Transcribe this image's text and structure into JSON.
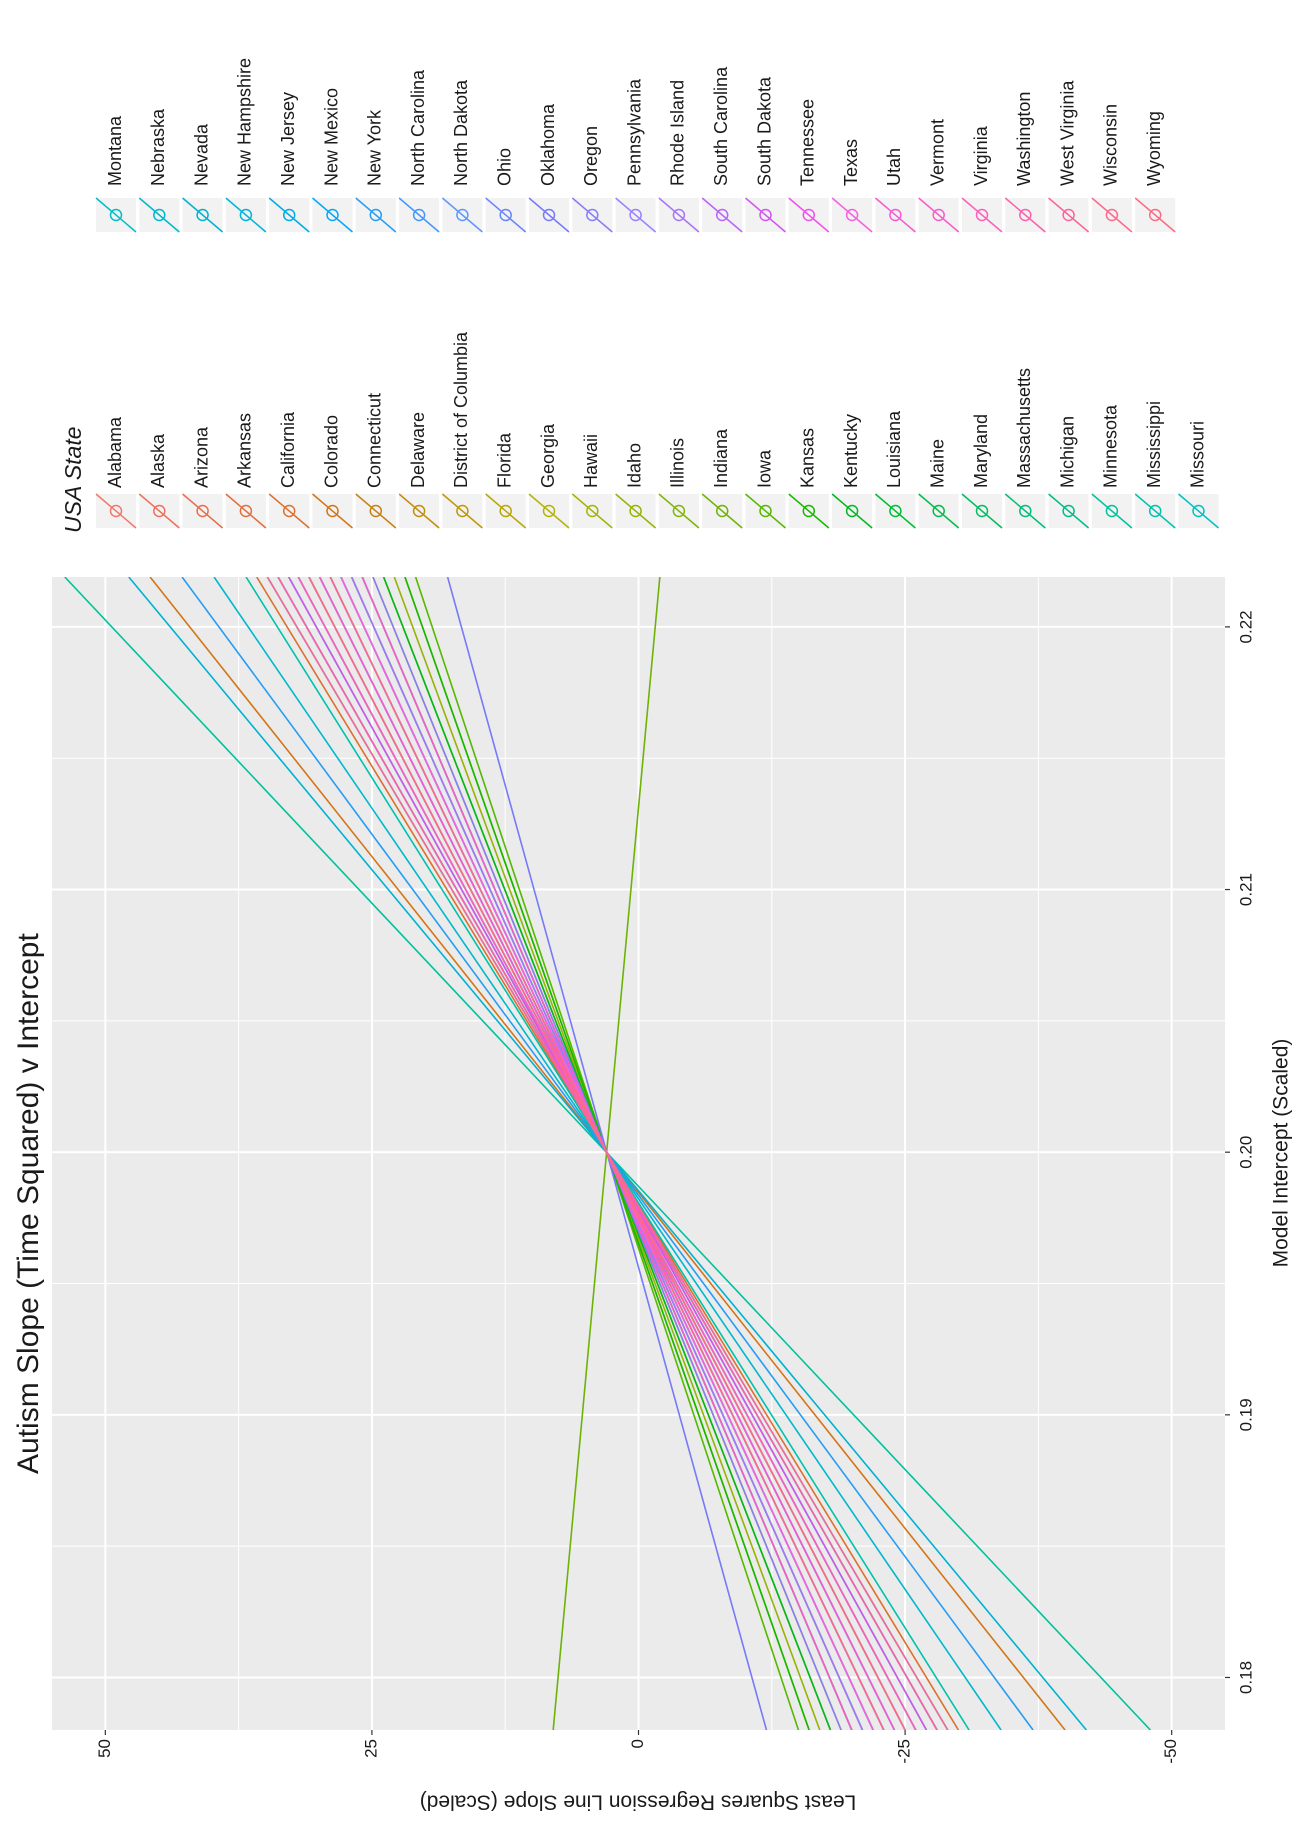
{
  "chart_data": {
    "type": "line",
    "title": "Autism Slope (Time Squared) v Intercept",
    "x_label": "Model Intercept (Scaled)",
    "y_label": "Least Squares Regression Line Slope (Scaled)",
    "legend_title": "USA State",
    "x": [
      0.178,
      0.2219
    ],
    "xlim": [
      0.178,
      0.2219
    ],
    "ylim": [
      -55,
      55
    ],
    "xticks": [
      0.18,
      0.19,
      {
        "value": 0.2,
        "label": "0.20"
      },
      0.21,
      0.22
    ],
    "yticks": [
      -50,
      -25,
      0,
      25,
      50
    ],
    "grid": true,
    "legend": "right",
    "series": [
      {
        "name": "Alabama",
        "color": "hsl(5,80%,68%)",
        "values": [
          -20,
          25.9
        ]
      },
      {
        "name": "Alaska",
        "color": "hsl(9,78%,64%)",
        "values": [
          -24,
          29.9
        ]
      },
      {
        "name": "Arizona",
        "color": "hsl(14,75%,60%)",
        "values": [
          -22,
          27.9
        ]
      },
      {
        "name": "Arkansas",
        "color": "hsl(18,72%,56%)",
        "values": [
          -26,
          31.9
        ]
      },
      {
        "name": "California",
        "color": "hsl(23,72%,52%)",
        "values": [
          -30,
          35.8
        ]
      },
      {
        "name": "Colorado",
        "color": "hsl(30,80%,46%)",
        "values": [
          -40,
          45.8
        ]
      },
      {
        "name": "Connecticut",
        "color": "hsl(37,85%,42%)",
        "values": [
          -28,
          33.8
        ]
      },
      {
        "name": "Delaware",
        "color": "hsl(43,90%,40%)",
        "values": [
          -23,
          28.9
        ]
      },
      {
        "name": "District of Columbia",
        "color": "hsl(48,95%,38%)",
        "values": [
          -21,
          26.9
        ]
      },
      {
        "name": "Florida",
        "color": "hsl(54,95%,37%)",
        "values": [
          -18,
          23.9
        ]
      },
      {
        "name": "Georgia",
        "color": "hsl(60,95%,36%)",
        "values": [
          -25,
          30.9
        ]
      },
      {
        "name": "Hawaii",
        "color": "hsl(65,95%,36%)",
        "values": [
          -19,
          24.9
        ]
      },
      {
        "name": "Idaho",
        "color": "hsl(70,95%,36%)",
        "values": [
          -17,
          22.9
        ]
      },
      {
        "name": "Illinois",
        "color": "hsl(77,95%,36%)",
        "values": [
          -16,
          21.9
        ]
      },
      {
        "name": "Indiana",
        "color": "hsl(84,95%,36%)",
        "values": [
          8,
          -2
        ]
      },
      {
        "name": "Iowa",
        "color": "hsl(92,100%,36%)",
        "values": [
          -15,
          20.9
        ]
      },
      {
        "name": "Kansas",
        "color": "hsl(112,100%,36%)",
        "values": [
          -16,
          21.9
        ]
      },
      {
        "name": "Kentucky",
        "color": "hsl(130,100%,36%)",
        "values": [
          -18,
          23.9
        ]
      },
      {
        "name": "Louisiana",
        "color": "hsl(137,100%,37%)",
        "values": [
          -20,
          25.9
        ]
      },
      {
        "name": "Maine",
        "color": "hsl(144,100%,37%)",
        "values": [
          -22,
          27.9
        ]
      },
      {
        "name": "Maryland",
        "color": "hsl(151,100%,37%)",
        "values": [
          -24,
          29.9
        ]
      },
      {
        "name": "Massachusetts",
        "color": "hsl(158,100%,37%)",
        "values": [
          -27,
          32.8
        ]
      },
      {
        "name": "Michigan",
        "color": "hsl(163,100%,37%)",
        "values": [
          -29,
          34.8
        ]
      },
      {
        "name": "Minnesota",
        "color": "hsl(168,100%,38%)",
        "values": [
          -48,
          53.8
        ]
      },
      {
        "name": "Mississippi",
        "color": "hsl(173,100%,38%)",
        "values": [
          -31,
          36.8
        ]
      },
      {
        "name": "Missouri",
        "color": "hsl(179,100%,38%)",
        "values": [
          -26,
          31.9
        ]
      },
      {
        "name": "Montana",
        "color": "hsl(183,100%,39%)",
        "values": [
          -23,
          28.9
        ]
      },
      {
        "name": "Nebraska",
        "color": "hsl(186,100%,40%)",
        "values": [
          -34,
          39.8
        ]
      },
      {
        "name": "Nevada",
        "color": "hsl(189,100%,41%)",
        "values": [
          -42,
          47.8
        ]
      },
      {
        "name": "New Hampshire",
        "color": "hsl(191,100%,43%)",
        "values": [
          -21,
          26.9
        ]
      },
      {
        "name": "New Jersey",
        "color": "hsl(195,100%,45%)",
        "values": [
          -25,
          30.9
        ]
      },
      {
        "name": "New Mexico",
        "color": "hsl(200,95%,50%)",
        "values": [
          -28,
          33.8
        ]
      },
      {
        "name": "New York",
        "color": "hsl(205,90%,55%)",
        "values": [
          -37,
          42.8
        ]
      },
      {
        "name": "North Carolina",
        "color": "hsl(212,95%,62%)",
        "values": [
          -20,
          25.9
        ]
      },
      {
        "name": "North Dakota",
        "color": "hsl(218,100%,68%)",
        "values": [
          -24,
          29.9
        ]
      },
      {
        "name": "Ohio",
        "color": "hsl(229,95%,70%)",
        "values": [
          -22,
          27.9
        ]
      },
      {
        "name": "Oklahoma",
        "color": "hsl(239,90%,72%)",
        "values": [
          -12,
          17.9
        ]
      },
      {
        "name": "Oregon",
        "color": "hsl(246,90%,73%)",
        "values": [
          -19,
          24.9
        ]
      },
      {
        "name": "Pennsylvania",
        "color": "hsl(253,100%,75%)",
        "values": [
          -26,
          31.9
        ]
      },
      {
        "name": "Rhode Island",
        "color": "hsl(263,95%,72%)",
        "values": [
          -21,
          26.9
        ]
      },
      {
        "name": "South Carolina",
        "color": "hsl(275,90%,68%)",
        "values": [
          -23,
          28.9
        ]
      },
      {
        "name": "South Dakota",
        "color": "hsl(288,85%,64%)",
        "values": [
          -27,
          32.8
        ]
      },
      {
        "name": "Tennessee",
        "color": "hsl(301,85%,63%)",
        "values": [
          -25,
          30.9
        ]
      },
      {
        "name": "Texas",
        "color": "hsl(308,88%,67%)",
        "values": [
          -22,
          27.9
        ]
      },
      {
        "name": "Utah",
        "color": "hsl(314,90%,66%)",
        "values": [
          -24,
          29.9
        ]
      },
      {
        "name": "Vermont",
        "color": "hsl(319,92%,67%)",
        "values": [
          -20,
          25.9
        ]
      },
      {
        "name": "Virginia",
        "color": "hsl(325,95%,68%)",
        "values": [
          -26,
          31.9
        ]
      },
      {
        "name": "Washington",
        "color": "hsl(331,95%,68%)",
        "values": [
          -28,
          33.8
        ]
      },
      {
        "name": "West Virginia",
        "color": "hsl(338,95%,69%)",
        "values": [
          -29,
          34.8
        ]
      },
      {
        "name": "Wisconsin",
        "color": "hsl(345,95%,70%)",
        "values": [
          -23,
          28.9
        ]
      },
      {
        "name": "Wyoming",
        "color": "hsl(350,92%,70%)",
        "values": [
          -25,
          30.9
        ]
      }
    ]
  }
}
